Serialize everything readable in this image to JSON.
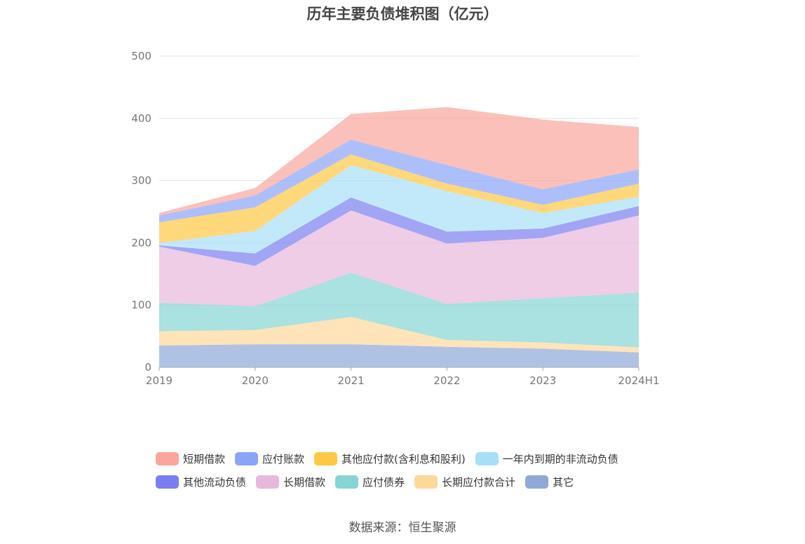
{
  "chart_data": {
    "type": "area",
    "title": "历年主要负债堆积图（亿元）",
    "source": "数据来源：恒生聚源",
    "categories": [
      "2019",
      "2020",
      "2021",
      "2022",
      "2023",
      "2024H1"
    ],
    "ylim": [
      0,
      500
    ],
    "yticks": [
      0,
      100,
      200,
      300,
      400,
      500
    ],
    "stacked": true,
    "grid": true,
    "legend_position": "bottom",
    "series": [
      {
        "name": "其它",
        "color": "#8fa8d8",
        "values": [
          35,
          37,
          37,
          33,
          30,
          24
        ]
      },
      {
        "name": "长期应付款合计",
        "color": "#fdd89a",
        "values": [
          23,
          23,
          44,
          11,
          10,
          8
        ]
      },
      {
        "name": "应付债券",
        "color": "#86d4d4",
        "values": [
          46,
          38,
          71,
          58,
          71,
          88
        ]
      },
      {
        "name": "长期借款",
        "color": "#e8b8dc",
        "values": [
          90,
          65,
          100,
          97,
          97,
          124
        ]
      },
      {
        "name": "其他流动负债",
        "color": "#7b7ef0",
        "values": [
          2,
          20,
          21,
          19,
          15,
          15
        ]
      },
      {
        "name": "一年内到期的非流动负债",
        "color": "#a8dff8",
        "values": [
          4,
          36,
          52,
          65,
          25,
          15
        ]
      },
      {
        "name": "其他应付款(含利息和股利)",
        "color": "#fdc843",
        "values": [
          33,
          38,
          17,
          12,
          13,
          21
        ]
      },
      {
        "name": "应付账款",
        "color": "#8aa4f8",
        "values": [
          11,
          19,
          24,
          30,
          25,
          23
        ]
      },
      {
        "name": "短期借款",
        "color": "#fba59c",
        "values": [
          4,
          12,
          41,
          93,
          112,
          68
        ]
      }
    ],
    "legend_order": [
      "短期借款",
      "应付账款",
      "其他应付款(含利息和股利)",
      "一年内到期的非流动负债",
      "其他流动负债",
      "长期借款",
      "应付债券",
      "长期应付款合计",
      "其它"
    ]
  }
}
